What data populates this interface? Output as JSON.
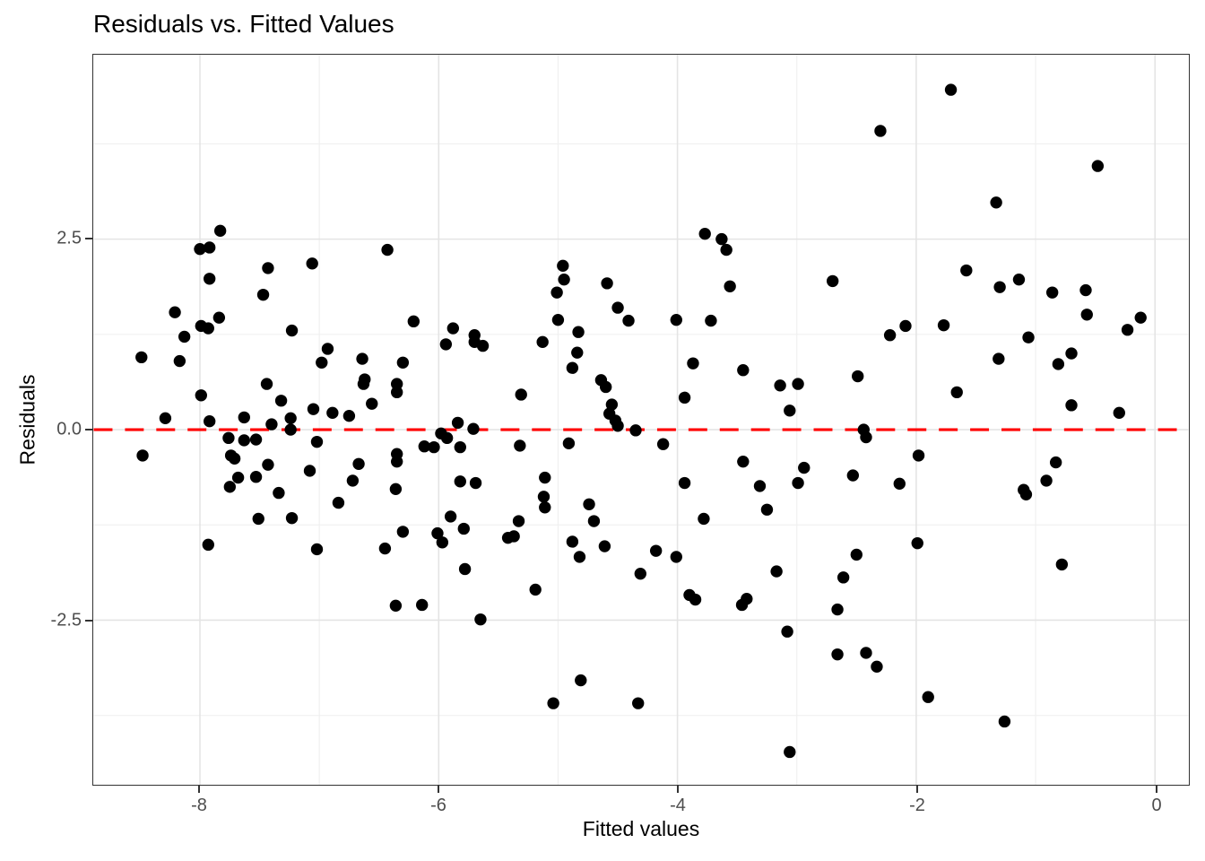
{
  "title": "Residuals vs. Fitted Values",
  "chart_data": {
    "type": "scatter",
    "title": "Residuals vs. Fitted Values",
    "xlabel": "Fitted values",
    "ylabel": "Residuals",
    "xlim": [
      -8.89,
      0.28
    ],
    "ylim": [
      -4.66,
      4.92
    ],
    "x_ticks": [
      -8,
      -6,
      -4,
      -2,
      0
    ],
    "x_tick_labels": [
      "-8",
      "-6",
      "-4",
      "-2",
      "0"
    ],
    "x_minor_ticks": [
      -7,
      -5,
      -3,
      -1
    ],
    "y_ticks": [
      -2.5,
      0,
      2.5
    ],
    "y_tick_labels": [
      "-2.5",
      "0.0",
      "2.5"
    ],
    "y_minor_ticks": [
      -3.75,
      -1.25,
      1.25,
      3.75
    ],
    "grid": true,
    "legend": false,
    "background": "#ffffff",
    "point_color": "#000000",
    "point_radius": 6.7,
    "grid_major_color": "#e4e4e4",
    "grid_minor_color": "#f0f0f0",
    "reference_line": {
      "y": 0,
      "color": "#ff0000",
      "style": "dashed"
    },
    "points": [
      [
        -7.83,
        2.61
      ],
      [
        -8.0,
        2.37
      ],
      [
        -7.92,
        2.39
      ],
      [
        -7.92,
        1.98
      ],
      [
        -7.43,
        2.12
      ],
      [
        -7.06,
        2.18
      ],
      [
        -7.47,
        1.77
      ],
      [
        -6.43,
        2.36
      ],
      [
        -4.96,
        2.15
      ],
      [
        -4.95,
        1.97
      ],
      [
        -5.01,
        1.8
      ],
      [
        -4.59,
        1.92
      ],
      [
        -2.3,
        3.92
      ],
      [
        -3.77,
        2.57
      ],
      [
        -3.63,
        2.5
      ],
      [
        -3.59,
        2.36
      ],
      [
        -3.56,
        1.88
      ],
      [
        -2.7,
        1.95
      ],
      [
        -1.71,
        4.46
      ],
      [
        -0.48,
        3.46
      ],
      [
        -1.33,
        2.98
      ],
      [
        -1.58,
        2.09
      ],
      [
        -1.14,
        1.97
      ],
      [
        -1.3,
        1.87
      ],
      [
        -0.86,
        1.8
      ],
      [
        -0.58,
        1.83
      ],
      [
        -8.21,
        1.54
      ],
      [
        -7.99,
        1.36
      ],
      [
        -7.93,
        1.33
      ],
      [
        -7.84,
        1.47
      ],
      [
        -8.13,
        1.22
      ],
      [
        -7.23,
        1.3
      ],
      [
        -8.49,
        0.95
      ],
      [
        -8.17,
        0.9
      ],
      [
        -6.93,
        1.06
      ],
      [
        -6.98,
        0.88
      ],
      [
        -6.64,
        0.93
      ],
      [
        -7.44,
        0.6
      ],
      [
        -6.63,
        0.6
      ],
      [
        -7.99,
        0.45
      ],
      [
        -7.32,
        0.38
      ],
      [
        -8.29,
        0.15
      ],
      [
        -7.92,
        0.11
      ],
      [
        -7.63,
        0.16
      ],
      [
        -7.4,
        0.07
      ],
      [
        -7.24,
        0.15
      ],
      [
        -7.24,
        0.0
      ],
      [
        -7.05,
        0.27
      ],
      [
        -6.89,
        0.22
      ],
      [
        -6.75,
        0.18
      ],
      [
        -7.76,
        -0.11
      ],
      [
        -7.63,
        -0.14
      ],
      [
        -7.53,
        -0.13
      ],
      [
        -7.02,
        -0.16
      ],
      [
        -8.48,
        -0.34
      ],
      [
        -7.74,
        -0.34
      ],
      [
        -7.71,
        -0.38
      ],
      [
        -7.68,
        -0.63
      ],
      [
        -7.75,
        -0.75
      ],
      [
        -7.53,
        -0.62
      ],
      [
        -7.43,
        -0.46
      ],
      [
        -7.34,
        -0.83
      ],
      [
        -7.08,
        -0.54
      ],
      [
        -6.72,
        -0.67
      ],
      [
        -6.84,
        -0.96
      ],
      [
        -7.51,
        -1.17
      ],
      [
        -7.23,
        -1.16
      ],
      [
        -6.67,
        -0.45
      ],
      [
        -7.93,
        -1.51
      ],
      [
        -6.21,
        1.42
      ],
      [
        -5.88,
        1.33
      ],
      [
        -5.94,
        1.12
      ],
      [
        -5.7,
        1.24
      ],
      [
        -5.7,
        1.15
      ],
      [
        -5.63,
        1.1
      ],
      [
        -5.13,
        1.15
      ],
      [
        -5.0,
        1.44
      ],
      [
        -4.83,
        1.28
      ],
      [
        -4.84,
        1.01
      ],
      [
        -4.88,
        0.81
      ],
      [
        -4.5,
        1.6
      ],
      [
        -4.41,
        1.43
      ],
      [
        -4.64,
        0.65
      ],
      [
        -4.6,
        0.56
      ],
      [
        -4.55,
        0.33
      ],
      [
        -4.57,
        0.21
      ],
      [
        -4.52,
        0.12
      ],
      [
        -4.5,
        0.05
      ],
      [
        -4.35,
        -0.01
      ],
      [
        -5.31,
        0.46
      ],
      [
        -6.3,
        0.88
      ],
      [
        -6.35,
        0.6
      ],
      [
        -6.35,
        0.49
      ],
      [
        -6.56,
        0.34
      ],
      [
        -6.62,
        0.66
      ],
      [
        -5.84,
        0.09
      ],
      [
        -5.71,
        0.01
      ],
      [
        -5.98,
        -0.05
      ],
      [
        -5.93,
        -0.11
      ],
      [
        -5.82,
        -0.23
      ],
      [
        -6.12,
        -0.22
      ],
      [
        -6.04,
        -0.23
      ],
      [
        -6.35,
        -0.32
      ],
      [
        -6.35,
        -0.42
      ],
      [
        -5.32,
        -0.21
      ],
      [
        -4.91,
        -0.18
      ],
      [
        -6.36,
        -0.78
      ],
      [
        -5.82,
        -0.68
      ],
      [
        -5.69,
        -0.7
      ],
      [
        -5.11,
        -0.63
      ],
      [
        -5.12,
        -0.88
      ],
      [
        -5.11,
        -1.02
      ],
      [
        -5.9,
        -1.14
      ],
      [
        -5.79,
        -1.3
      ],
      [
        -5.33,
        -1.2
      ],
      [
        -4.74,
        -0.98
      ],
      [
        -4.7,
        -1.2
      ],
      [
        -6.3,
        -1.34
      ],
      [
        -6.01,
        -1.36
      ],
      [
        -5.42,
        -1.42
      ],
      [
        -5.37,
        -1.4
      ],
      [
        -6.45,
        -1.56
      ],
      [
        -5.97,
        -1.48
      ],
      [
        -5.78,
        -1.83
      ],
      [
        -5.19,
        -2.1
      ],
      [
        -6.36,
        -2.31
      ],
      [
        -6.14,
        -2.3
      ],
      [
        -5.65,
        -2.49
      ],
      [
        -4.82,
        -1.67
      ],
      [
        -4.88,
        -1.47
      ],
      [
        -4.61,
        -1.53
      ],
      [
        -4.81,
        -3.29
      ],
      [
        -5.04,
        -3.59
      ],
      [
        -7.02,
        -1.57
      ],
      [
        -4.01,
        1.44
      ],
      [
        -3.72,
        1.43
      ],
      [
        -2.22,
        1.24
      ],
      [
        -2.09,
        1.36
      ],
      [
        -3.87,
        0.87
      ],
      [
        -3.45,
        0.78
      ],
      [
        -3.14,
        0.58
      ],
      [
        -2.99,
        0.6
      ],
      [
        -2.49,
        0.7
      ],
      [
        -3.94,
        0.42
      ],
      [
        -3.06,
        0.25
      ],
      [
        -2.44,
        0.0
      ],
      [
        -2.42,
        -0.1
      ],
      [
        -4.12,
        -0.19
      ],
      [
        -3.45,
        -0.42
      ],
      [
        -2.94,
        -0.5
      ],
      [
        -3.94,
        -0.7
      ],
      [
        -3.31,
        -0.74
      ],
      [
        -2.99,
        -0.7
      ],
      [
        -2.53,
        -0.6
      ],
      [
        -2.14,
        -0.71
      ],
      [
        -3.25,
        -1.05
      ],
      [
        -3.78,
        -1.17
      ],
      [
        -4.18,
        -1.59
      ],
      [
        -4.01,
        -1.67
      ],
      [
        -4.31,
        -1.89
      ],
      [
        -3.17,
        -1.86
      ],
      [
        -3.9,
        -2.17
      ],
      [
        -3.85,
        -2.23
      ],
      [
        -3.46,
        -2.3
      ],
      [
        -3.42,
        -2.22
      ],
      [
        -2.5,
        -1.64
      ],
      [
        -2.61,
        -1.94
      ],
      [
        -2.66,
        -2.36
      ],
      [
        -3.08,
        -2.65
      ],
      [
        -2.66,
        -2.95
      ],
      [
        -2.42,
        -2.93
      ],
      [
        -2.33,
        -3.11
      ],
      [
        -4.33,
        -3.59
      ],
      [
        -3.06,
        -4.23
      ],
      [
        -0.57,
        1.51
      ],
      [
        -0.12,
        1.47
      ],
      [
        -0.23,
        1.31
      ],
      [
        -1.77,
        1.37
      ],
      [
        -1.06,
        1.21
      ],
      [
        -1.31,
        0.93
      ],
      [
        -0.7,
        1.0
      ],
      [
        -0.81,
        0.86
      ],
      [
        -1.66,
        0.49
      ],
      [
        -0.7,
        0.32
      ],
      [
        -0.3,
        0.22
      ],
      [
        -1.98,
        -0.34
      ],
      [
        -0.83,
        -0.43
      ],
      [
        -0.91,
        -0.67
      ],
      [
        -1.1,
        -0.79
      ],
      [
        -1.08,
        -0.85
      ],
      [
        -1.99,
        -1.49
      ],
      [
        -0.78,
        -1.77
      ],
      [
        -1.9,
        -3.51
      ],
      [
        -1.26,
        -3.83
      ]
    ]
  }
}
